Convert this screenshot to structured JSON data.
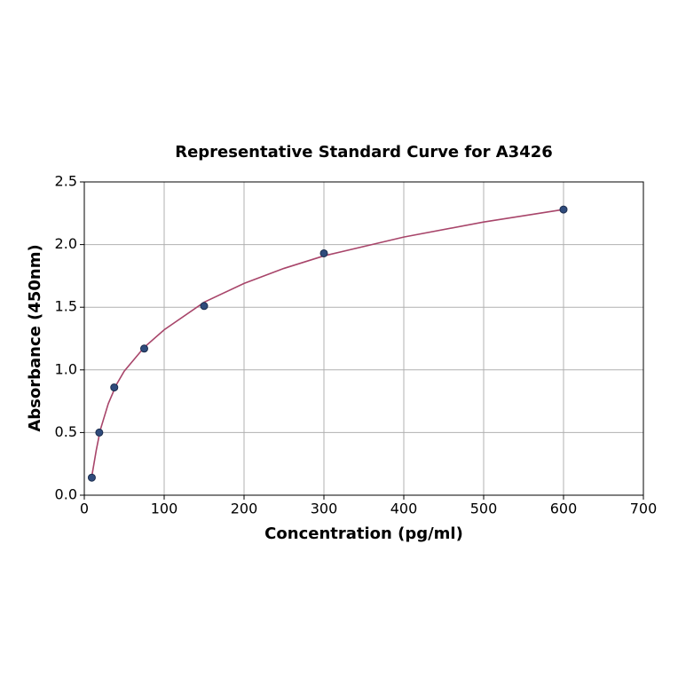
{
  "chart_data": {
    "type": "scatter",
    "title": "Representative Standard Curve for A3426",
    "x_label": "Concentration (pg/ml)",
    "y_label": "Absorbance (450nm)",
    "xlim": [
      0,
      700
    ],
    "ylim": [
      0,
      2.5
    ],
    "xticks": [
      0,
      100,
      200,
      300,
      400,
      500,
      600,
      700
    ],
    "yticks": [
      {
        "value": 0,
        "label": "0.0"
      },
      0.5,
      {
        "value": 1,
        "label": "1.0"
      },
      1.5,
      {
        "value": 2,
        "label": "2.0"
      },
      2.5
    ],
    "grid": true,
    "series": [
      {
        "mode": "lines",
        "color": "#a8456a",
        "x": [
          9.375,
          15,
          20,
          30,
          40,
          50,
          75,
          100,
          150,
          200,
          250,
          300,
          400,
          500,
          600
        ],
        "values": [
          0.15,
          0.36,
          0.52,
          0.73,
          0.88,
          0.99,
          1.18,
          1.32,
          1.54,
          1.69,
          1.81,
          1.91,
          2.06,
          2.18,
          2.28
        ]
      },
      {
        "mode": "markers",
        "color": "#2f4b7c",
        "x": [
          9.375,
          18.75,
          37.5,
          75,
          150,
          300,
          600
        ],
        "values": [
          0.14,
          0.5,
          0.86,
          1.17,
          1.51,
          1.93,
          2.28
        ]
      }
    ]
  }
}
